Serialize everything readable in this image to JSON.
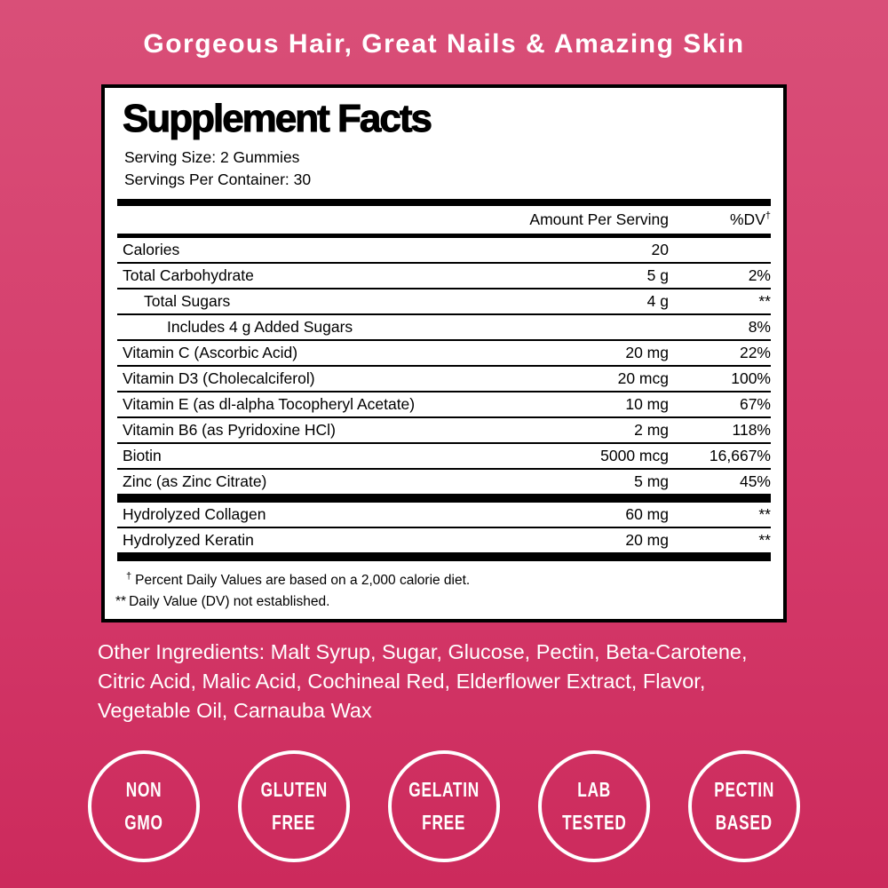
{
  "colors": {
    "background_top": "#d94f78",
    "background_bottom": "#cc2a5c",
    "panel_background": "#ffffff",
    "panel_border": "#000000",
    "text_on_pink": "#ffffff",
    "text_on_panel": "#000000"
  },
  "header": {
    "title": "Gorgeous Hair, Great Nails & Amazing Skin"
  },
  "panel": {
    "title": "Supplement Facts",
    "serving_size": "Serving Size: 2 Gummies",
    "servings_per_container": "Servings Per Container: 30",
    "columns": {
      "amount": "Amount Per Serving",
      "dv": "%DV",
      "dv_mark": "†"
    },
    "rows": [
      {
        "name": "Calories",
        "amount": "20",
        "dv": ""
      },
      {
        "name": "Total Carbohydrate",
        "amount": "5 g",
        "dv": "2%"
      },
      {
        "name": "Total Sugars",
        "amount": "4 g",
        "dv": "**"
      },
      {
        "name": "Includes 4 g Added Sugars",
        "amount": "",
        "dv": "8%"
      },
      {
        "name": "Vitamin C (Ascorbic Acid)",
        "amount": "20 mg",
        "dv": "22%"
      },
      {
        "name": "Vitamin D3 (Cholecalciferol)",
        "amount": "20 mcg",
        "dv": "100%"
      },
      {
        "name": "Vitamin E (as dl-alpha Tocopheryl Acetate)",
        "amount": "10 mg",
        "dv": "67%"
      },
      {
        "name": "Vitamin B6 (as Pyridoxine HCl)",
        "amount": "2 mg",
        "dv": "118%"
      },
      {
        "name": "Biotin",
        "amount": "5000 mcg",
        "dv": "16,667%"
      },
      {
        "name": "Zinc (as Zinc Citrate)",
        "amount": "5 mg",
        "dv": "45%"
      }
    ],
    "extra_rows": [
      {
        "name": "Hydrolyzed Collagen",
        "amount": "60 mg",
        "dv": "**"
      },
      {
        "name": "Hydrolyzed Keratin",
        "amount": "20 mg",
        "dv": "**"
      }
    ],
    "footnotes": [
      {
        "mark": "†",
        "text": "Percent Daily Values are based on a 2,000 calorie diet."
      },
      {
        "mark": "**",
        "text": "Daily Value (DV) not established."
      }
    ]
  },
  "other_ingredients": {
    "lines": [
      "Other Ingredients: Malt Syrup, Sugar, Glucose, Pectin, Beta-Carotene,",
      "Citric Acid, Malic Acid, Cochineal Red, Elderflower Extract, Flavor,",
      "Vegetable Oil, Carnauba Wax"
    ]
  },
  "badges": [
    {
      "line1": "NON",
      "line2": "GMO"
    },
    {
      "line1": "GLUTEN",
      "line2": "FREE"
    },
    {
      "line1": "GELATIN",
      "line2": "FREE"
    },
    {
      "line1": "LAB",
      "line2": "TESTED"
    },
    {
      "line1": "PECTIN",
      "line2": "BASED"
    }
  ]
}
